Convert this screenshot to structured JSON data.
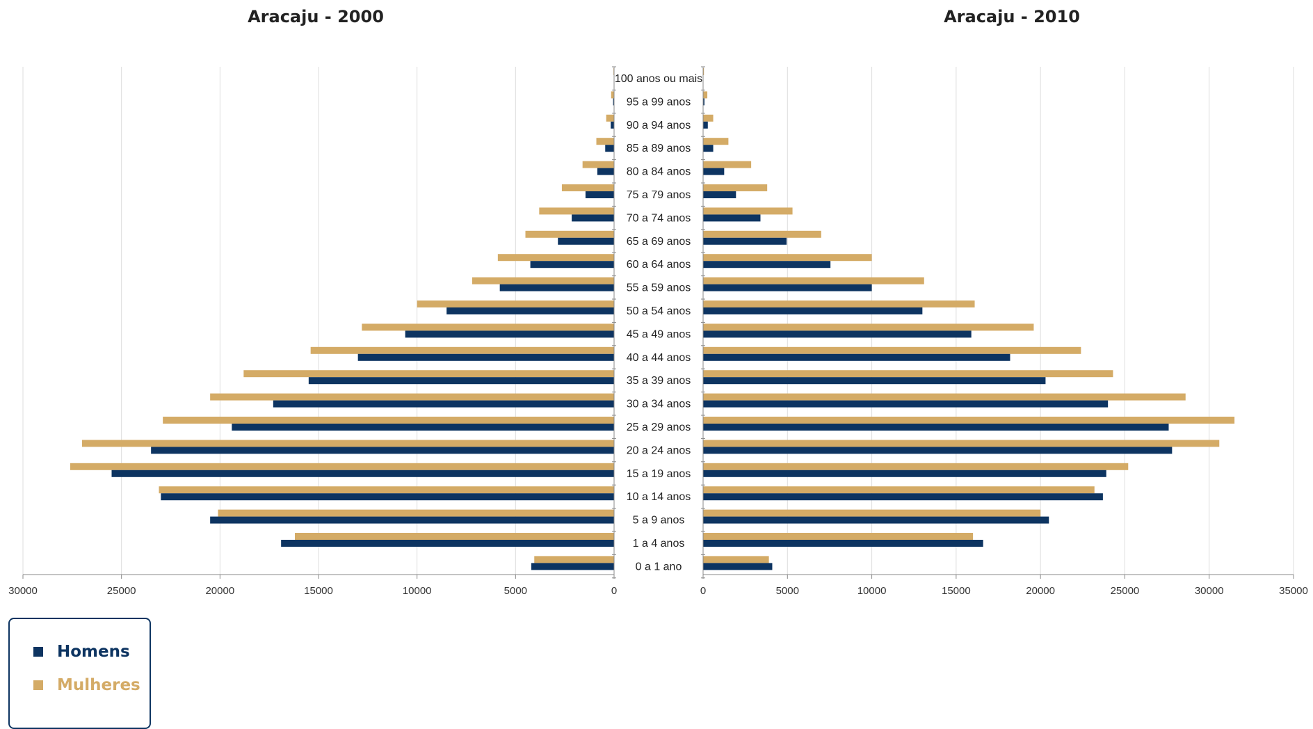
{
  "colors": {
    "homens": "#0d3461",
    "mulheres": "#d4ab66"
  },
  "legend": {
    "homens": "Homens",
    "mulheres": "Mulheres"
  },
  "age_groups": [
    "100 anos ou mais",
    "95 a 99 anos",
    "90 a 94 anos",
    "85 a 89 anos",
    "80 a 84 anos",
    "75 a 79 anos",
    "70 a 74 anos",
    "65 a 69 anos",
    "60 a 64 anos",
    "55 a 59 anos",
    "50 a 54 anos",
    "45 a 49 anos",
    "40 a 44 anos",
    "35 a 39 anos",
    "30 a 34 anos",
    "25 a 29 anos",
    "20 a 24 anos",
    "15 a 19 anos",
    "10 a 14 anos",
    "5 a 9 anos",
    "1 a 4 anos",
    "0 a 1 ano"
  ],
  "chart_data": [
    {
      "type": "bar",
      "orientation": "horizontal",
      "title": "Aracaju - 2000",
      "xlim": [
        0,
        30000
      ],
      "x_reversed": true,
      "xticks": [
        "0",
        "5000",
        "10000",
        "15000",
        "20000",
        "25000",
        "30000"
      ],
      "grid": true,
      "series": [
        {
          "name": "Mulheres",
          "values": [
            30,
            150,
            400,
            900,
            1600,
            2650,
            3800,
            4500,
            5900,
            7200,
            10000,
            12800,
            15400,
            18800,
            20500,
            22900,
            27000,
            27600,
            23100,
            20100,
            16200,
            4050
          ]
        },
        {
          "name": "Homens",
          "values": [
            10,
            50,
            170,
            450,
            850,
            1450,
            2150,
            2850,
            4250,
            5800,
            8500,
            10600,
            13000,
            15500,
            17300,
            19400,
            23500,
            25500,
            23000,
            20500,
            16900,
            4200
          ]
        }
      ]
    },
    {
      "type": "bar",
      "orientation": "horizontal",
      "title": "Aracaju - 2010",
      "xlim": [
        0,
        35000
      ],
      "xticks": [
        "0",
        "5000",
        "10000",
        "15000",
        "20000",
        "25000",
        "30000",
        "35000"
      ],
      "grid": true,
      "series": [
        {
          "name": "Mulheres",
          "values": [
            50,
            250,
            600,
            1500,
            2850,
            3800,
            5300,
            7000,
            10000,
            13100,
            16100,
            19600,
            22400,
            24300,
            28600,
            31500,
            30600,
            25200,
            23200,
            20000,
            16000,
            3900
          ]
        },
        {
          "name": "Homens",
          "values": [
            15,
            80,
            280,
            600,
            1250,
            1950,
            3400,
            4950,
            7550,
            10000,
            13000,
            15900,
            18200,
            20300,
            24000,
            27600,
            27800,
            23900,
            23700,
            20500,
            16600,
            4100
          ]
        }
      ]
    }
  ]
}
